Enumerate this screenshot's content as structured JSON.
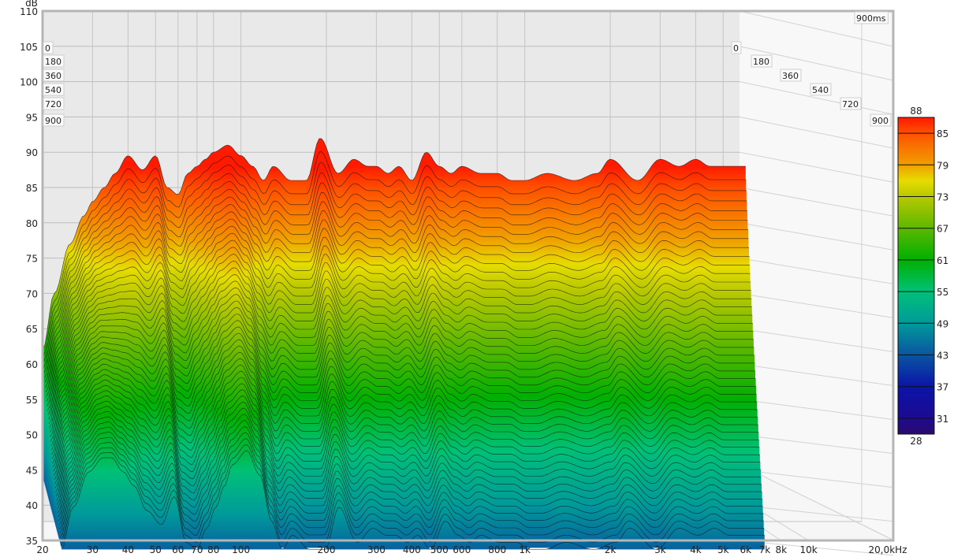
{
  "chart_data": {
    "type": "waterfall",
    "title": "",
    "y_unit": "dB",
    "ylim": [
      35,
      110
    ],
    "y_ticks": [
      "35",
      "40",
      "45",
      "50",
      "55",
      "60",
      "65",
      "70",
      "75",
      "80",
      "85",
      "90",
      "95",
      "100",
      "105",
      "110"
    ],
    "x_scale": "log",
    "xlim": [
      20,
      20000
    ],
    "x_ticks": [
      {
        "label": "20",
        "value": 20
      },
      {
        "label": "30",
        "value": 30
      },
      {
        "label": "40",
        "value": 40
      },
      {
        "label": "50",
        "value": 50
      },
      {
        "label": "60",
        "value": 60
      },
      {
        "label": "70",
        "value": 70
      },
      {
        "label": "80",
        "value": 80
      },
      {
        "label": "100",
        "value": 100
      },
      {
        "label": "200",
        "value": 200
      },
      {
        "label": "300",
        "value": 300
      },
      {
        "label": "400",
        "value": 400
      },
      {
        "label": "500",
        "value": 500
      },
      {
        "label": "600",
        "value": 600
      },
      {
        "label": "800",
        "value": 800
      },
      {
        "label": "1k",
        "value": 1000
      },
      {
        "label": "2k",
        "value": 2000
      },
      {
        "label": "3k",
        "value": 3000
      },
      {
        "label": "4k",
        "value": 4000
      },
      {
        "label": "5k",
        "value": 5000
      },
      {
        "label": "6k",
        "value": 6000
      },
      {
        "label": "7k",
        "value": 7000
      },
      {
        "label": "8k",
        "value": 8000
      },
      {
        "label": "10k",
        "value": 10000
      },
      {
        "label": "20,0kHz",
        "value": 20000
      }
    ],
    "time_labels": [
      "0",
      "180",
      "360",
      "540",
      "720",
      "900"
    ],
    "time_end_label": "900ms",
    "time_range_ms": [
      0,
      900
    ],
    "slice_step_ms": 20,
    "grid": true,
    "colorbar": {
      "min_label": "28",
      "max_label": "88",
      "ticks": [
        "85",
        "79",
        "73",
        "67",
        "61",
        "55",
        "49",
        "43",
        "37",
        "31"
      ],
      "range": [
        28,
        88
      ],
      "stops": [
        {
          "db": 28,
          "color": "#2b0a6a"
        },
        {
          "db": 31,
          "color": "#1c0a90"
        },
        {
          "db": 37,
          "color": "#0a14a8"
        },
        {
          "db": 43,
          "color": "#0a55a0"
        },
        {
          "db": 49,
          "color": "#009a9a"
        },
        {
          "db": 55,
          "color": "#00c078"
        },
        {
          "db": 61,
          "color": "#00b000"
        },
        {
          "db": 67,
          "color": "#5cb800"
        },
        {
          "db": 73,
          "color": "#b8c800"
        },
        {
          "db": 76,
          "color": "#e6dc00"
        },
        {
          "db": 79,
          "color": "#f0a000"
        },
        {
          "db": 85,
          "color": "#ff5000"
        },
        {
          "db": 88,
          "color": "#ff1a00"
        }
      ]
    },
    "series": {
      "frequency_hz": [
        20,
        22,
        25,
        28,
        30,
        33,
        36,
        40,
        45,
        50,
        55,
        60,
        65,
        70,
        75,
        80,
        90,
        100,
        110,
        120,
        130,
        150,
        170,
        190,
        220,
        250,
        280,
        300,
        330,
        360,
        400,
        450,
        500,
        550,
        600,
        700,
        800,
        900,
        1000,
        1200,
        1500,
        1800,
        2000,
        2500,
        3000,
        3500,
        4000,
        4500,
        5000,
        5500,
        6000
      ],
      "level_db_at_0ms": [
        62,
        70,
        77,
        81,
        83,
        85,
        87,
        89.5,
        87.5,
        89.5,
        85,
        84,
        87,
        88,
        89,
        90,
        91,
        89.5,
        88,
        86,
        88,
        86,
        86,
        92,
        87,
        89,
        88,
        88,
        87,
        88,
        86,
        90,
        88,
        87,
        88,
        87,
        87,
        86,
        86,
        87,
        86,
        87,
        89,
        86,
        89,
        88,
        89,
        88,
        88,
        88,
        88
      ],
      "decay_db_over_900ms": [
        18,
        20,
        22,
        24,
        26,
        30,
        34,
        40,
        40,
        38,
        40,
        40,
        40,
        38,
        36,
        34,
        33,
        35,
        40,
        42,
        42,
        42,
        42,
        42,
        42,
        42,
        42,
        42,
        42,
        42,
        42,
        42,
        42,
        42,
        42,
        42,
        42,
        42,
        42,
        42,
        42,
        42,
        42,
        42,
        42,
        42,
        42,
        42,
        42,
        42,
        42
      ],
      "floor_db": 44
    }
  }
}
